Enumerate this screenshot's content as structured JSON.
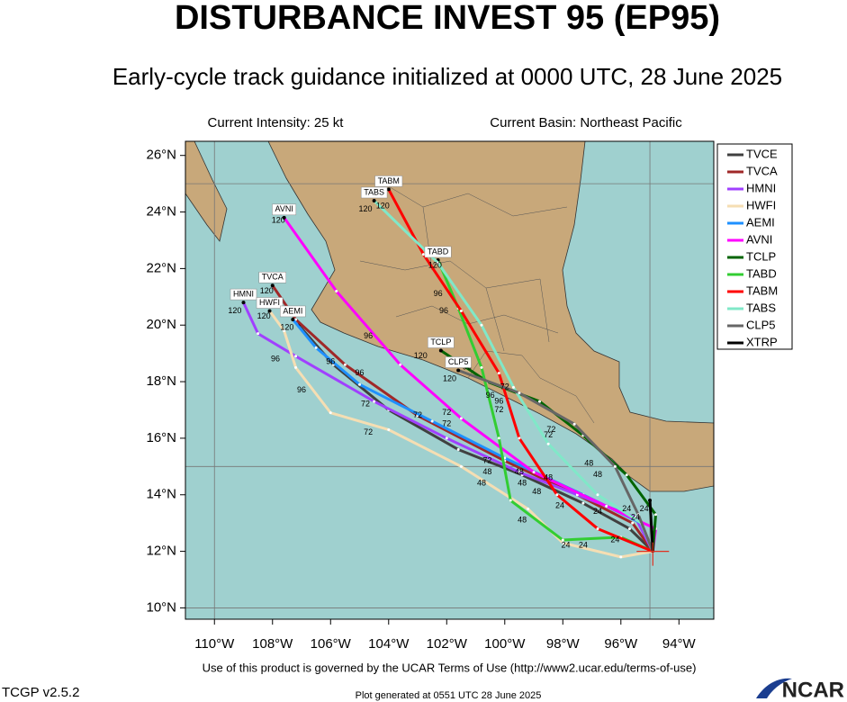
{
  "header": {
    "title": "DISTURBANCE INVEST 95 (EP95)",
    "subtitle": "Early-cycle track guidance initialized at 0000 UTC, 28 June 2025",
    "intensity": "Current Intensity: 25 kt",
    "basin": "Current Basin: Northeast Pacific"
  },
  "map": {
    "xlim": [
      -111,
      -92.8
    ],
    "ylim": [
      9.6,
      26.5
    ],
    "xticks": [
      {
        "value": -110,
        "label": "110°W"
      },
      {
        "value": -108,
        "label": "108°W"
      },
      {
        "value": -106,
        "label": "106°W"
      },
      {
        "value": -104,
        "label": "104°W"
      },
      {
        "value": -102,
        "label": "102°W"
      },
      {
        "value": -100,
        "label": "100°W"
      },
      {
        "value": -98,
        "label": "98°W"
      },
      {
        "value": -96,
        "label": "96°W"
      },
      {
        "value": -94,
        "label": "94°W"
      }
    ],
    "yticks": [
      {
        "value": 26,
        "label": "26°N"
      },
      {
        "value": 24,
        "label": "24°N"
      },
      {
        "value": 22,
        "label": "22°N"
      },
      {
        "value": 20,
        "label": "20°N"
      },
      {
        "value": 18,
        "label": "18°N"
      },
      {
        "value": 16,
        "label": "16°N"
      },
      {
        "value": 14,
        "label": "14°N"
      },
      {
        "value": 12,
        "label": "12°N"
      },
      {
        "value": 10,
        "label": "10°N"
      }
    ],
    "grid_lons": [
      -110,
      -95
    ],
    "grid_lats": [
      10,
      15,
      25
    ]
  },
  "tracks": [
    {
      "name": "TVCE",
      "color": "#404040",
      "labeled": false,
      "points": [
        [
          -94.9,
          12.0
        ],
        [
          -95.7,
          12.8
        ],
        [
          -97.3,
          13.7
        ],
        [
          -99.4,
          14.7
        ],
        [
          -101.6,
          15.6
        ],
        [
          -104.0,
          17.0
        ],
        [
          -105.9,
          18.6
        ],
        [
          -107.1,
          20.0
        ]
      ]
    },
    {
      "name": "TVCA",
      "color": "#a02828",
      "labeled": true,
      "points": [
        [
          -94.9,
          12.0
        ],
        [
          -95.6,
          13.0
        ],
        [
          -97.5,
          14.0
        ],
        [
          -100.0,
          15.2
        ],
        [
          -103.0,
          16.8
        ],
        [
          -105.5,
          18.6
        ],
        [
          -107.2,
          20.2
        ],
        [
          -108.0,
          21.4
        ]
      ]
    },
    {
      "name": "HMNI",
      "color": "#a040ff",
      "labeled": true,
      "points": [
        [
          -94.9,
          12.0
        ],
        [
          -95.5,
          13.2
        ],
        [
          -97.5,
          14.0
        ],
        [
          -99.5,
          14.8
        ],
        [
          -102.0,
          16.0
        ],
        [
          -104.5,
          17.3
        ],
        [
          -107.2,
          18.9
        ],
        [
          -108.5,
          19.7
        ],
        [
          -109.0,
          20.8
        ]
      ]
    },
    {
      "name": "HWFI",
      "color": "#f5deb3",
      "labeled": true,
      "points": [
        [
          -94.9,
          12.0
        ],
        [
          -96.0,
          11.8
        ],
        [
          -98.0,
          12.3
        ],
        [
          -99.2,
          13.5
        ],
        [
          -101.5,
          15.0
        ],
        [
          -104.0,
          16.3
        ],
        [
          -106.0,
          16.9
        ],
        [
          -107.2,
          18.5
        ],
        [
          -107.6,
          19.8
        ],
        [
          -108.1,
          20.5
        ]
      ]
    },
    {
      "name": "AEMI",
      "color": "#1e90ff",
      "labeled": true,
      "points": [
        [
          -94.9,
          12.0
        ],
        [
          -95.3,
          13.0
        ],
        [
          -97.3,
          14.0
        ],
        [
          -100.0,
          15.3
        ],
        [
          -102.5,
          16.6
        ],
        [
          -105.0,
          17.9
        ],
        [
          -106.5,
          19.2
        ],
        [
          -107.3,
          20.2
        ]
      ]
    },
    {
      "name": "AVNI",
      "color": "#ff00ff",
      "labeled": true,
      "points": [
        [
          -94.9,
          12.0
        ],
        [
          -94.8,
          12.8
        ],
        [
          -96.5,
          13.6
        ],
        [
          -99.0,
          14.8
        ],
        [
          -101.5,
          16.7
        ],
        [
          -103.6,
          18.6
        ],
        [
          -105.8,
          21.2
        ],
        [
          -107.6,
          23.8
        ]
      ]
    },
    {
      "name": "TCLP",
      "color": "#006400",
      "labeled": true,
      "points": [
        [
          -94.9,
          12.0
        ],
        [
          -94.8,
          13.3
        ],
        [
          -95.8,
          14.7
        ],
        [
          -97.3,
          16.1
        ],
        [
          -98.8,
          17.3
        ],
        [
          -100.6,
          18.0
        ],
        [
          -102.2,
          19.1
        ]
      ]
    },
    {
      "name": "TABD",
      "color": "#32cd32",
      "labeled": true,
      "points": [
        [
          -94.9,
          12.0
        ],
        [
          -96.0,
          12.5
        ],
        [
          -98.0,
          12.4
        ],
        [
          -99.8,
          13.8
        ],
        [
          -100.2,
          16.0
        ],
        [
          -100.8,
          18.5
        ],
        [
          -101.6,
          20.6
        ],
        [
          -102.3,
          22.3
        ]
      ]
    },
    {
      "name": "TABM",
      "color": "#ff0000",
      "labeled": true,
      "points": [
        [
          -94.9,
          12.0
        ],
        [
          -96.8,
          12.8
        ],
        [
          -98.2,
          14.0
        ],
        [
          -99.5,
          16.0
        ],
        [
          -100.2,
          18.3
        ],
        [
          -101.5,
          20.5
        ],
        [
          -102.8,
          22.5
        ],
        [
          -104.0,
          24.8
        ]
      ]
    },
    {
      "name": "TABS",
      "color": "#80e8c8",
      "labeled": true,
      "points": [
        [
          -94.9,
          12.0
        ],
        [
          -95.3,
          13.0
        ],
        [
          -96.8,
          14.0
        ],
        [
          -98.5,
          15.8
        ],
        [
          -99.7,
          17.8
        ],
        [
          -100.8,
          20.0
        ],
        [
          -102.3,
          22.2
        ],
        [
          -104.5,
          24.4
        ]
      ]
    },
    {
      "name": "CLP5",
      "color": "#666666",
      "labeled": true,
      "points": [
        [
          -94.9,
          12.0
        ],
        [
          -95.4,
          13.3
        ],
        [
          -96.2,
          15.0
        ],
        [
          -97.6,
          16.5
        ],
        [
          -99.5,
          17.6
        ],
        [
          -101.6,
          18.4
        ]
      ]
    },
    {
      "name": "XTRP",
      "color": "#000000",
      "labeled": false,
      "points": [
        [
          -94.9,
          12.0
        ],
        [
          -95.0,
          13.8
        ]
      ]
    }
  ],
  "hour_labels": [
    {
      "text": "120",
      "lon": -107.8,
      "lat": 23.7
    },
    {
      "text": "120",
      "lon": -108.2,
      "lat": 21.2
    },
    {
      "text": "120",
      "lon": -109.3,
      "lat": 20.5
    },
    {
      "text": "120",
      "lon": -108.3,
      "lat": 20.3
    },
    {
      "text": "120",
      "lon": -107.5,
      "lat": 19.9
    },
    {
      "text": "120",
      "lon": -104.8,
      "lat": 24.1
    },
    {
      "text": "120",
      "lon": -104.2,
      "lat": 24.2
    },
    {
      "text": "120",
      "lon": -102.4,
      "lat": 22.1
    },
    {
      "text": "120",
      "lon": -102.9,
      "lat": 18.9
    },
    {
      "text": "120",
      "lon": -101.9,
      "lat": 18.1
    },
    {
      "text": "96",
      "lon": -104.7,
      "lat": 19.6
    },
    {
      "text": "96",
      "lon": -107.9,
      "lat": 18.8
    },
    {
      "text": "96",
      "lon": -106.0,
      "lat": 18.7
    },
    {
      "text": "96",
      "lon": -105.0,
      "lat": 18.3
    },
    {
      "text": "96",
      "lon": -107.0,
      "lat": 17.7
    },
    {
      "text": "96",
      "lon": -102.3,
      "lat": 21.1
    },
    {
      "text": "96",
      "lon": -102.1,
      "lat": 20.5
    },
    {
      "text": "96",
      "lon": -101.3,
      "lat": 18.5
    },
    {
      "text": "96",
      "lon": -100.5,
      "lat": 17.5
    },
    {
      "text": "96",
      "lon": -100.2,
      "lat": 17.3
    },
    {
      "text": "72",
      "lon": -104.8,
      "lat": 17.2
    },
    {
      "text": "72",
      "lon": -104.7,
      "lat": 16.2
    },
    {
      "text": "72",
      "lon": -103.0,
      "lat": 16.8
    },
    {
      "text": "72",
      "lon": -102.0,
      "lat": 16.9
    },
    {
      "text": "72",
      "lon": -102.0,
      "lat": 16.5
    },
    {
      "text": "72",
      "lon": -100.0,
      "lat": 17.8
    },
    {
      "text": "72",
      "lon": -100.2,
      "lat": 17.0
    },
    {
      "text": "72",
      "lon": -98.4,
      "lat": 16.3
    },
    {
      "text": "72",
      "lon": -98.5,
      "lat": 16.1
    },
    {
      "text": "72",
      "lon": -100.6,
      "lat": 15.2
    },
    {
      "text": "48",
      "lon": -100.6,
      "lat": 14.8
    },
    {
      "text": "48",
      "lon": -100.8,
      "lat": 14.4
    },
    {
      "text": "48",
      "lon": -99.5,
      "lat": 14.8
    },
    {
      "text": "48",
      "lon": -99.4,
      "lat": 14.4
    },
    {
      "text": "48",
      "lon": -98.9,
      "lat": 14.1
    },
    {
      "text": "48",
      "lon": -98.5,
      "lat": 14.6
    },
    {
      "text": "48",
      "lon": -97.1,
      "lat": 15.1
    },
    {
      "text": "48",
      "lon": -96.8,
      "lat": 14.7
    },
    {
      "text": "48",
      "lon": -99.4,
      "lat": 13.1
    },
    {
      "text": "24",
      "lon": -98.1,
      "lat": 13.6
    },
    {
      "text": "24",
      "lon": -96.8,
      "lat": 13.4
    },
    {
      "text": "24",
      "lon": -95.8,
      "lat": 13.5
    },
    {
      "text": "24",
      "lon": -95.2,
      "lat": 13.5
    },
    {
      "text": "24",
      "lon": -95.5,
      "lat": 13.2
    },
    {
      "text": "24",
      "lon": -97.9,
      "lat": 12.2
    },
    {
      "text": "24",
      "lon": -97.3,
      "lat": 12.2
    },
    {
      "text": "24",
      "lon": -96.2,
      "lat": 12.4
    }
  ],
  "footer": {
    "terms": "Use of this product is governed by the UCAR Terms of Use (http://www2.ucar.edu/terms-of-use)",
    "version": "TCGP v2.5.2",
    "generated": "Plot generated at 0551 UTC   28 June 2025",
    "logo": "NCAR"
  }
}
